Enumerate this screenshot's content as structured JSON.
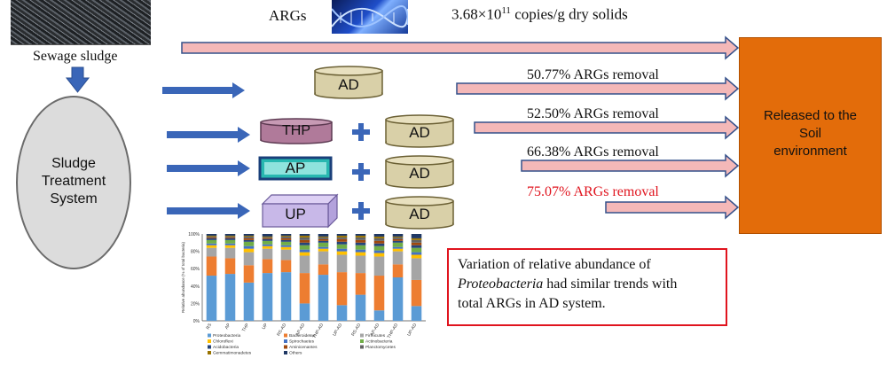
{
  "labels": {
    "sewage_sludge": "Sewage sludge",
    "args": "ARGs",
    "args_conc_base": "3.68×10",
    "args_conc_exp": "11",
    "args_conc_unit": " copies/g dry solids",
    "treatment_system": [
      "Sludge",
      "Treatment",
      "System"
    ],
    "released": [
      "Released to the",
      "Soil",
      "environment"
    ]
  },
  "processes": {
    "ad": "AD",
    "thp": "THP",
    "ap": "AP",
    "up": "UP",
    "plus": "+"
  },
  "removals": [
    {
      "text": "50.77% ARGs removal",
      "color": "#111111"
    },
    {
      "text": "52.50% ARGs removal",
      "color": "#111111"
    },
    {
      "text": "66.38% ARGs removal",
      "color": "#111111"
    },
    {
      "text": "75.07% ARGs removal",
      "color": "#e0141e"
    }
  ],
  "note": {
    "line1": "Variation of relative abundance of",
    "line2_italic": "Proteobacteria",
    "line2_rest": " had similar trends with",
    "line3": "total ARGs in AD system."
  },
  "colors": {
    "arrow_fill": "#f4b8b8",
    "arrow_stroke": "#34508a",
    "blue_arrow": "#3a66b8",
    "ad_fill": "#d9d0a8",
    "thp_fill": "#b07a9a",
    "ap_fill": "#28b8b0",
    "up_fill": "#c8b8e8",
    "release_fill": "#e36c0a",
    "note_border": "#e0141e"
  },
  "chart_data": {
    "type": "bar",
    "stacked": true,
    "ylabel": "Relative abundance (% of total bacteria)",
    "ylim": [
      0,
      100
    ],
    "yticks": [
      "0%",
      "20%",
      "40%",
      "60%",
      "80%",
      "100%"
    ],
    "categories": [
      "RS",
      "AP",
      "THP",
      "UP",
      "RS-AD",
      "AP-AD",
      "THP-AD",
      "UP-AD",
      "RS-AD",
      "AP-AD",
      "THP-AD",
      "UP-AD"
    ],
    "series": [
      {
        "name": "Proteobacteria",
        "color": "#5b9bd5",
        "values": [
          52,
          54,
          44,
          55,
          56,
          20,
          53,
          18,
          30,
          12,
          50,
          17
        ]
      },
      {
        "name": "Bacteroidetes",
        "color": "#ed7d31",
        "values": [
          22,
          18,
          20,
          16,
          14,
          35,
          12,
          38,
          25,
          40,
          15,
          30
        ]
      },
      {
        "name": "Firmicutes",
        "color": "#a5a5a5",
        "values": [
          10,
          12,
          15,
          12,
          12,
          20,
          15,
          20,
          20,
          22,
          15,
          25
        ]
      },
      {
        "name": "Chloroflexi",
        "color": "#ffc000",
        "values": [
          3,
          3,
          4,
          3,
          3,
          4,
          3,
          4,
          4,
          4,
          3,
          4
        ]
      },
      {
        "name": "Spirochaetes",
        "color": "#4472c4",
        "values": [
          2,
          2,
          3,
          2,
          2,
          3,
          2,
          3,
          3,
          3,
          2,
          3
        ]
      },
      {
        "name": "Actinobacteria",
        "color": "#70ad47",
        "values": [
          4,
          4,
          5,
          4,
          4,
          5,
          5,
          5,
          5,
          5,
          5,
          5
        ]
      },
      {
        "name": "Acidobacteria",
        "color": "#264478",
        "values": [
          2,
          2,
          2,
          2,
          2,
          3,
          2,
          3,
          3,
          3,
          2,
          3
        ]
      },
      {
        "name": "Aminicenantes",
        "color": "#9e480e",
        "values": [
          1,
          1,
          2,
          1,
          2,
          3,
          2,
          3,
          3,
          3,
          2,
          3
        ]
      },
      {
        "name": "Planctomycetes",
        "color": "#636363",
        "values": [
          1,
          1,
          2,
          1,
          2,
          3,
          2,
          2,
          3,
          3,
          2,
          3
        ]
      },
      {
        "name": "Gemmatimonadetes",
        "color": "#997300",
        "values": [
          1,
          1,
          1,
          1,
          1,
          2,
          1,
          2,
          2,
          2,
          1,
          2
        ]
      },
      {
        "name": "Others",
        "color": "#1f3864",
        "values": [
          2,
          2,
          2,
          3,
          2,
          2,
          3,
          2,
          2,
          3,
          3,
          5
        ]
      }
    ]
  }
}
